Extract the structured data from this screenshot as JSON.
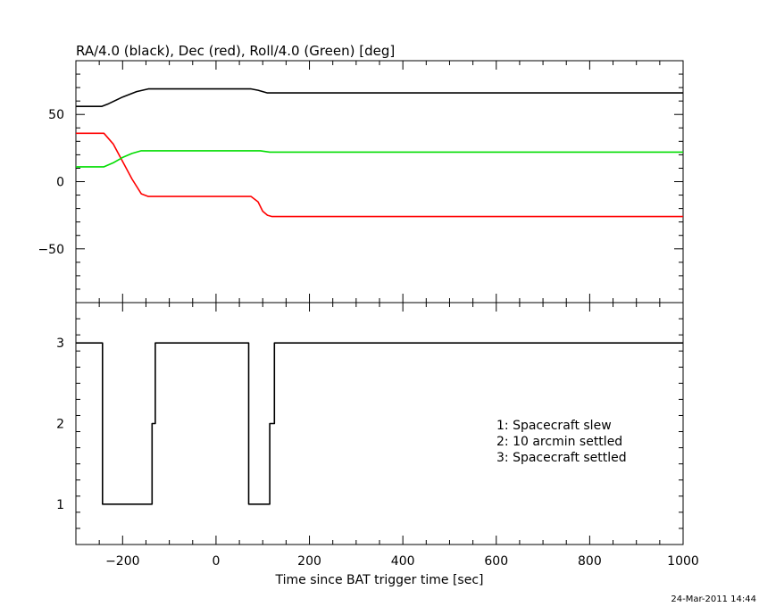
{
  "chart_data": [
    {
      "type": "line",
      "title": "RA/4.0 (black), Dec (red), Roll/4.0 (Green) [deg]",
      "xlim": [
        -300,
        1000
      ],
      "ylim": [
        -90,
        90
      ],
      "y_ticks": [
        -50,
        0,
        50
      ],
      "grid": false,
      "series": [
        {
          "color": "#000000",
          "x": [
            -300,
            -245,
            -230,
            -200,
            -170,
            -145,
            -130,
            75,
            90,
            110,
            130,
            1000
          ],
          "y": [
            56,
            56,
            58,
            63,
            67,
            69,
            69,
            69,
            68,
            66,
            66,
            66
          ]
        },
        {
          "color": "#ff0000",
          "x": [
            -300,
            -240,
            -220,
            -200,
            -180,
            -160,
            -145,
            -130,
            75,
            90,
            100,
            110,
            120,
            1000
          ],
          "y": [
            36,
            36,
            28,
            15,
            2,
            -9,
            -11,
            -11,
            -11,
            -15,
            -22,
            -25,
            -26,
            -26
          ]
        },
        {
          "color": "#00dd00",
          "x": [
            -300,
            -240,
            -220,
            -200,
            -180,
            -160,
            -145,
            95,
            115,
            1000
          ],
          "y": [
            11,
            11,
            14,
            18,
            21,
            23,
            23,
            23,
            22,
            22
          ]
        }
      ]
    },
    {
      "type": "line",
      "xlim": [
        -300,
        1000
      ],
      "ylim": [
        0.5,
        3.5
      ],
      "y_ticks": [
        1,
        2,
        3
      ],
      "x_ticks": [
        -200,
        0,
        200,
        400,
        600,
        800,
        1000
      ],
      "xlabel": "Time since BAT trigger time [sec]",
      "grid": false,
      "series": [
        {
          "color": "#000000",
          "x": [
            -300,
            -243,
            -243,
            -137,
            -137,
            -130,
            -130,
            70,
            70,
            115,
            115,
            125,
            125,
            1000
          ],
          "y": [
            3,
            3,
            1,
            1,
            2,
            2,
            3,
            3,
            1,
            1,
            2,
            2,
            3,
            3
          ]
        }
      ],
      "annotations": [
        "1: Spacecraft slew",
        "2: 10 arcmin settled",
        "3: Spacecraft settled"
      ]
    }
  ],
  "stamp": "24-Mar-2011 14:44"
}
